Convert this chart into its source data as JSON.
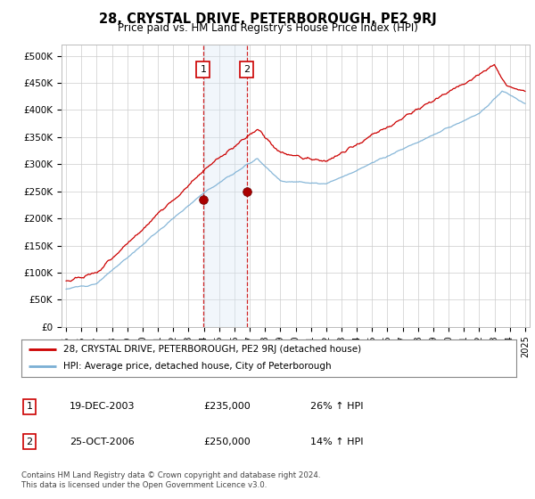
{
  "title": "28, CRYSTAL DRIVE, PETERBOROUGH, PE2 9RJ",
  "subtitle": "Price paid vs. HM Land Registry's House Price Index (HPI)",
  "ylabel_ticks": [
    "£0",
    "£50K",
    "£100K",
    "£150K",
    "£200K",
    "£250K",
    "£300K",
    "£350K",
    "£400K",
    "£450K",
    "£500K"
  ],
  "ytick_values": [
    0,
    50000,
    100000,
    150000,
    200000,
    250000,
    300000,
    350000,
    400000,
    450000,
    500000
  ],
  "ylim": [
    0,
    520000
  ],
  "xlim_start": 1994.7,
  "xlim_end": 2025.3,
  "purchase1_date": 2003.96,
  "purchase1_price": 235000,
  "purchase1_label": "1",
  "purchase2_date": 2006.81,
  "purchase2_price": 250000,
  "purchase2_label": "2",
  "red_line_color": "#cc0000",
  "blue_line_color": "#7aafd4",
  "shade_color": "#d8e8f5",
  "grid_color": "#cccccc",
  "background_color": "#ffffff",
  "plot_bg_color": "#ffffff",
  "legend_label_red": "28, CRYSTAL DRIVE, PETERBOROUGH, PE2 9RJ (detached house)",
  "legend_label_blue": "HPI: Average price, detached house, City of Peterborough",
  "table_row1": [
    "1",
    "19-DEC-2003",
    "£235,000",
    "26% ↑ HPI"
  ],
  "table_row2": [
    "2",
    "25-OCT-2006",
    "£250,000",
    "14% ↑ HPI"
  ],
  "footnote": "Contains HM Land Registry data © Crown copyright and database right 2024.\nThis data is licensed under the Open Government Licence v3.0.",
  "xtick_years": [
    1995,
    1996,
    1997,
    1998,
    1999,
    2000,
    2001,
    2002,
    2003,
    2004,
    2005,
    2006,
    2007,
    2008,
    2009,
    2010,
    2011,
    2012,
    2013,
    2014,
    2015,
    2016,
    2017,
    2018,
    2019,
    2020,
    2021,
    2022,
    2023,
    2024,
    2025
  ]
}
